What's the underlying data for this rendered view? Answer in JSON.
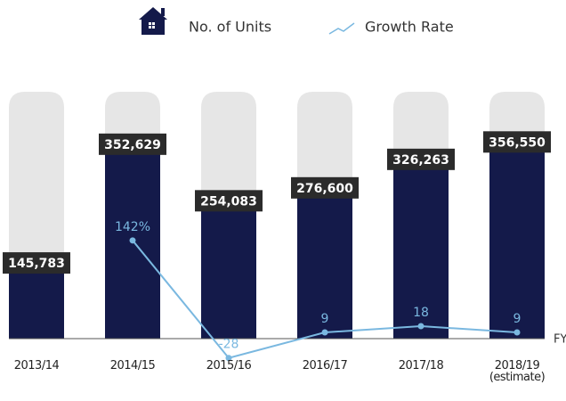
{
  "chart_data": {
    "type": "bar",
    "legend": [
      "No. of Units",
      "Growth Rate"
    ],
    "xlabel": "FY",
    "categories": [
      "2013/14",
      "2014/15",
      "2015/16",
      "2016/17",
      "2017/18",
      "2018/19 (estimate)"
    ],
    "series": [
      {
        "name": "No. of Units",
        "type": "bar",
        "color": "#141a4a",
        "values": [
          145783,
          352629,
          254083,
          276600,
          326263,
          356550
        ],
        "value_labels": [
          "145,783",
          "352,629",
          "254,083",
          "276,600",
          "326,263",
          "356,550"
        ]
      },
      {
        "name": "Growth Rate",
        "type": "line",
        "axis": "y2",
        "color": "#7ab8e0",
        "values": [
          null,
          142,
          -28,
          9,
          18,
          9
        ],
        "value_labels": [
          null,
          "142%",
          "-28",
          "9",
          "18",
          "9"
        ]
      }
    ],
    "ylim": [
      0,
      430000
    ],
    "y2lim": [
      0,
      357
    ]
  }
}
